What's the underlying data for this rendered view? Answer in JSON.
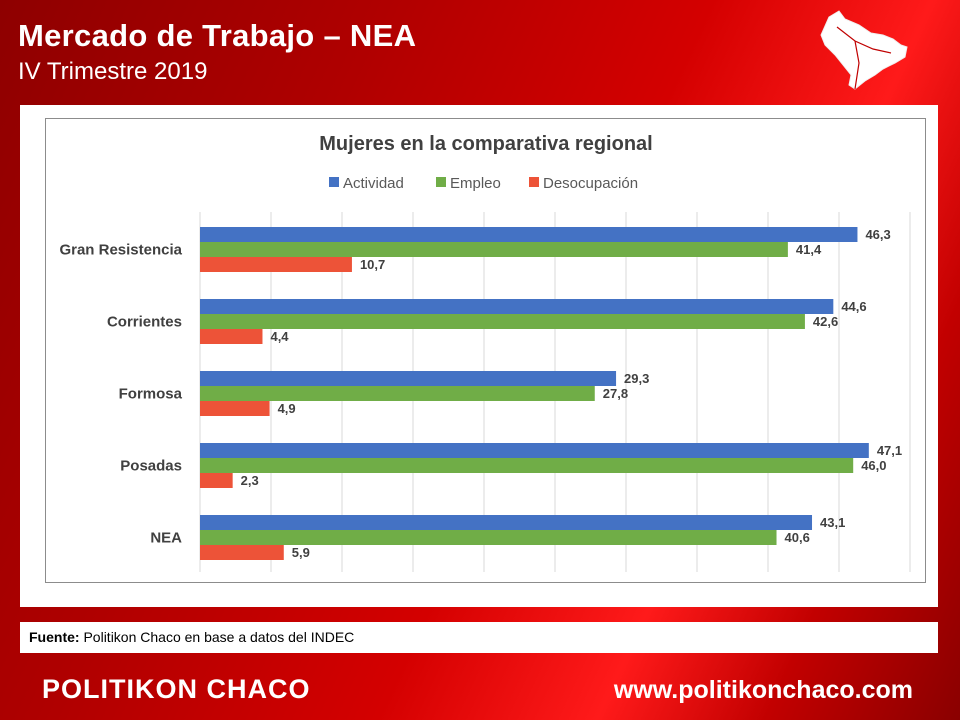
{
  "header": {
    "title": "Mercado de Trabajo – NEA",
    "subtitle": "IV Trimestre 2019"
  },
  "source": {
    "label": "Fuente:",
    "text": "Politikon Chaco en base a datos del INDEC"
  },
  "footer": {
    "brand": "POLITIKON CHACO",
    "url": "www.politikonchaco.com"
  },
  "chart_data": {
    "type": "bar",
    "orientation": "horizontal",
    "title": "Mujeres en la comparativa regional",
    "categories": [
      "Gran Resistencia",
      "Corrientes",
      "Formosa",
      "Posadas",
      "NEA"
    ],
    "series": [
      {
        "name": "Actividad",
        "color": "#4472c4",
        "values": [
          46.3,
          44.6,
          29.3,
          47.1,
          43.1
        ],
        "labels": [
          "46,3",
          "44,6",
          "29,3",
          "47,1",
          "43,1"
        ]
      },
      {
        "name": "Empleo",
        "color": "#70ad47",
        "values": [
          41.4,
          42.6,
          27.8,
          46.0,
          40.6
        ],
        "labels": [
          "41,4",
          "42,6",
          "27,8",
          "46,0",
          "40,6"
        ]
      },
      {
        "name": "Desocupación",
        "color": "#ed5338",
        "values": [
          10.7,
          4.4,
          4.9,
          2.3,
          5.9
        ],
        "labels": [
          "10,7",
          "4,4",
          "4,9",
          "2,3",
          "5,9"
        ]
      }
    ],
    "xlim": [
      0,
      50
    ],
    "grid": true,
    "legend": "top"
  }
}
